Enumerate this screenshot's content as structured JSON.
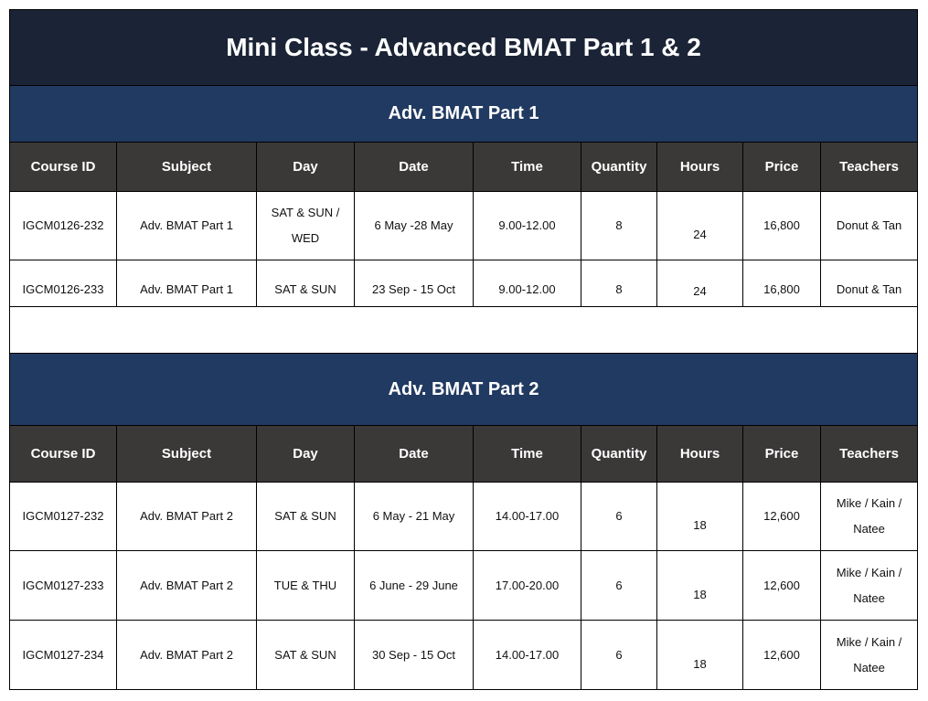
{
  "title": "Mini Class - Advanced BMAT Part 1 & 2",
  "columns": [
    "Course ID",
    "Subject",
    "Day",
    "Date",
    "Time",
    "Quantity",
    "Hours",
    "Price",
    "Teachers"
  ],
  "sections": [
    {
      "heading": "Adv. BMAT Part 1",
      "rows": [
        {
          "course_id": "IGCM0126-232",
          "subject": "Adv. BMAT Part 1",
          "day": "SAT & SUN / WED",
          "date": "6 May -28 May",
          "time": "9.00-12.00",
          "quantity": "8",
          "hours": "24",
          "price": "16,800",
          "teachers": "Donut & Tan"
        },
        {
          "course_id": "IGCM0126-233",
          "subject": "Adv. BMAT Part 1",
          "day": "SAT & SUN",
          "date": "23 Sep - 15 Oct",
          "time": "9.00-12.00",
          "quantity": "8",
          "hours": "24",
          "price": "16,800",
          "teachers": "Donut & Tan"
        }
      ]
    },
    {
      "heading": "Adv. BMAT Part 2",
      "rows": [
        {
          "course_id": "IGCM0127-232",
          "subject": "Adv. BMAT Part 2",
          "day": "SAT & SUN",
          "date": "6 May - 21 May",
          "time": "14.00-17.00",
          "quantity": "6",
          "hours": "18",
          "price": "12,600",
          "teachers": "Mike / Kain / Natee"
        },
        {
          "course_id": "IGCM0127-233",
          "subject": "Adv. BMAT Part 2",
          "day": "TUE & THU",
          "date": "6 June - 29 June",
          "time": "17.00-20.00",
          "quantity": "6",
          "hours": "18",
          "price": "12,600",
          "teachers": "Mike / Kain / Natee"
        },
        {
          "course_id": "IGCM0127-234",
          "subject": "Adv. BMAT Part 2",
          "day": "SAT & SUN",
          "date": "30 Sep - 15 Oct",
          "time": "14.00-17.00",
          "quantity": "6",
          "hours": "18",
          "price": "12,600",
          "teachers": "Mike / Kain / Natee"
        }
      ]
    }
  ]
}
